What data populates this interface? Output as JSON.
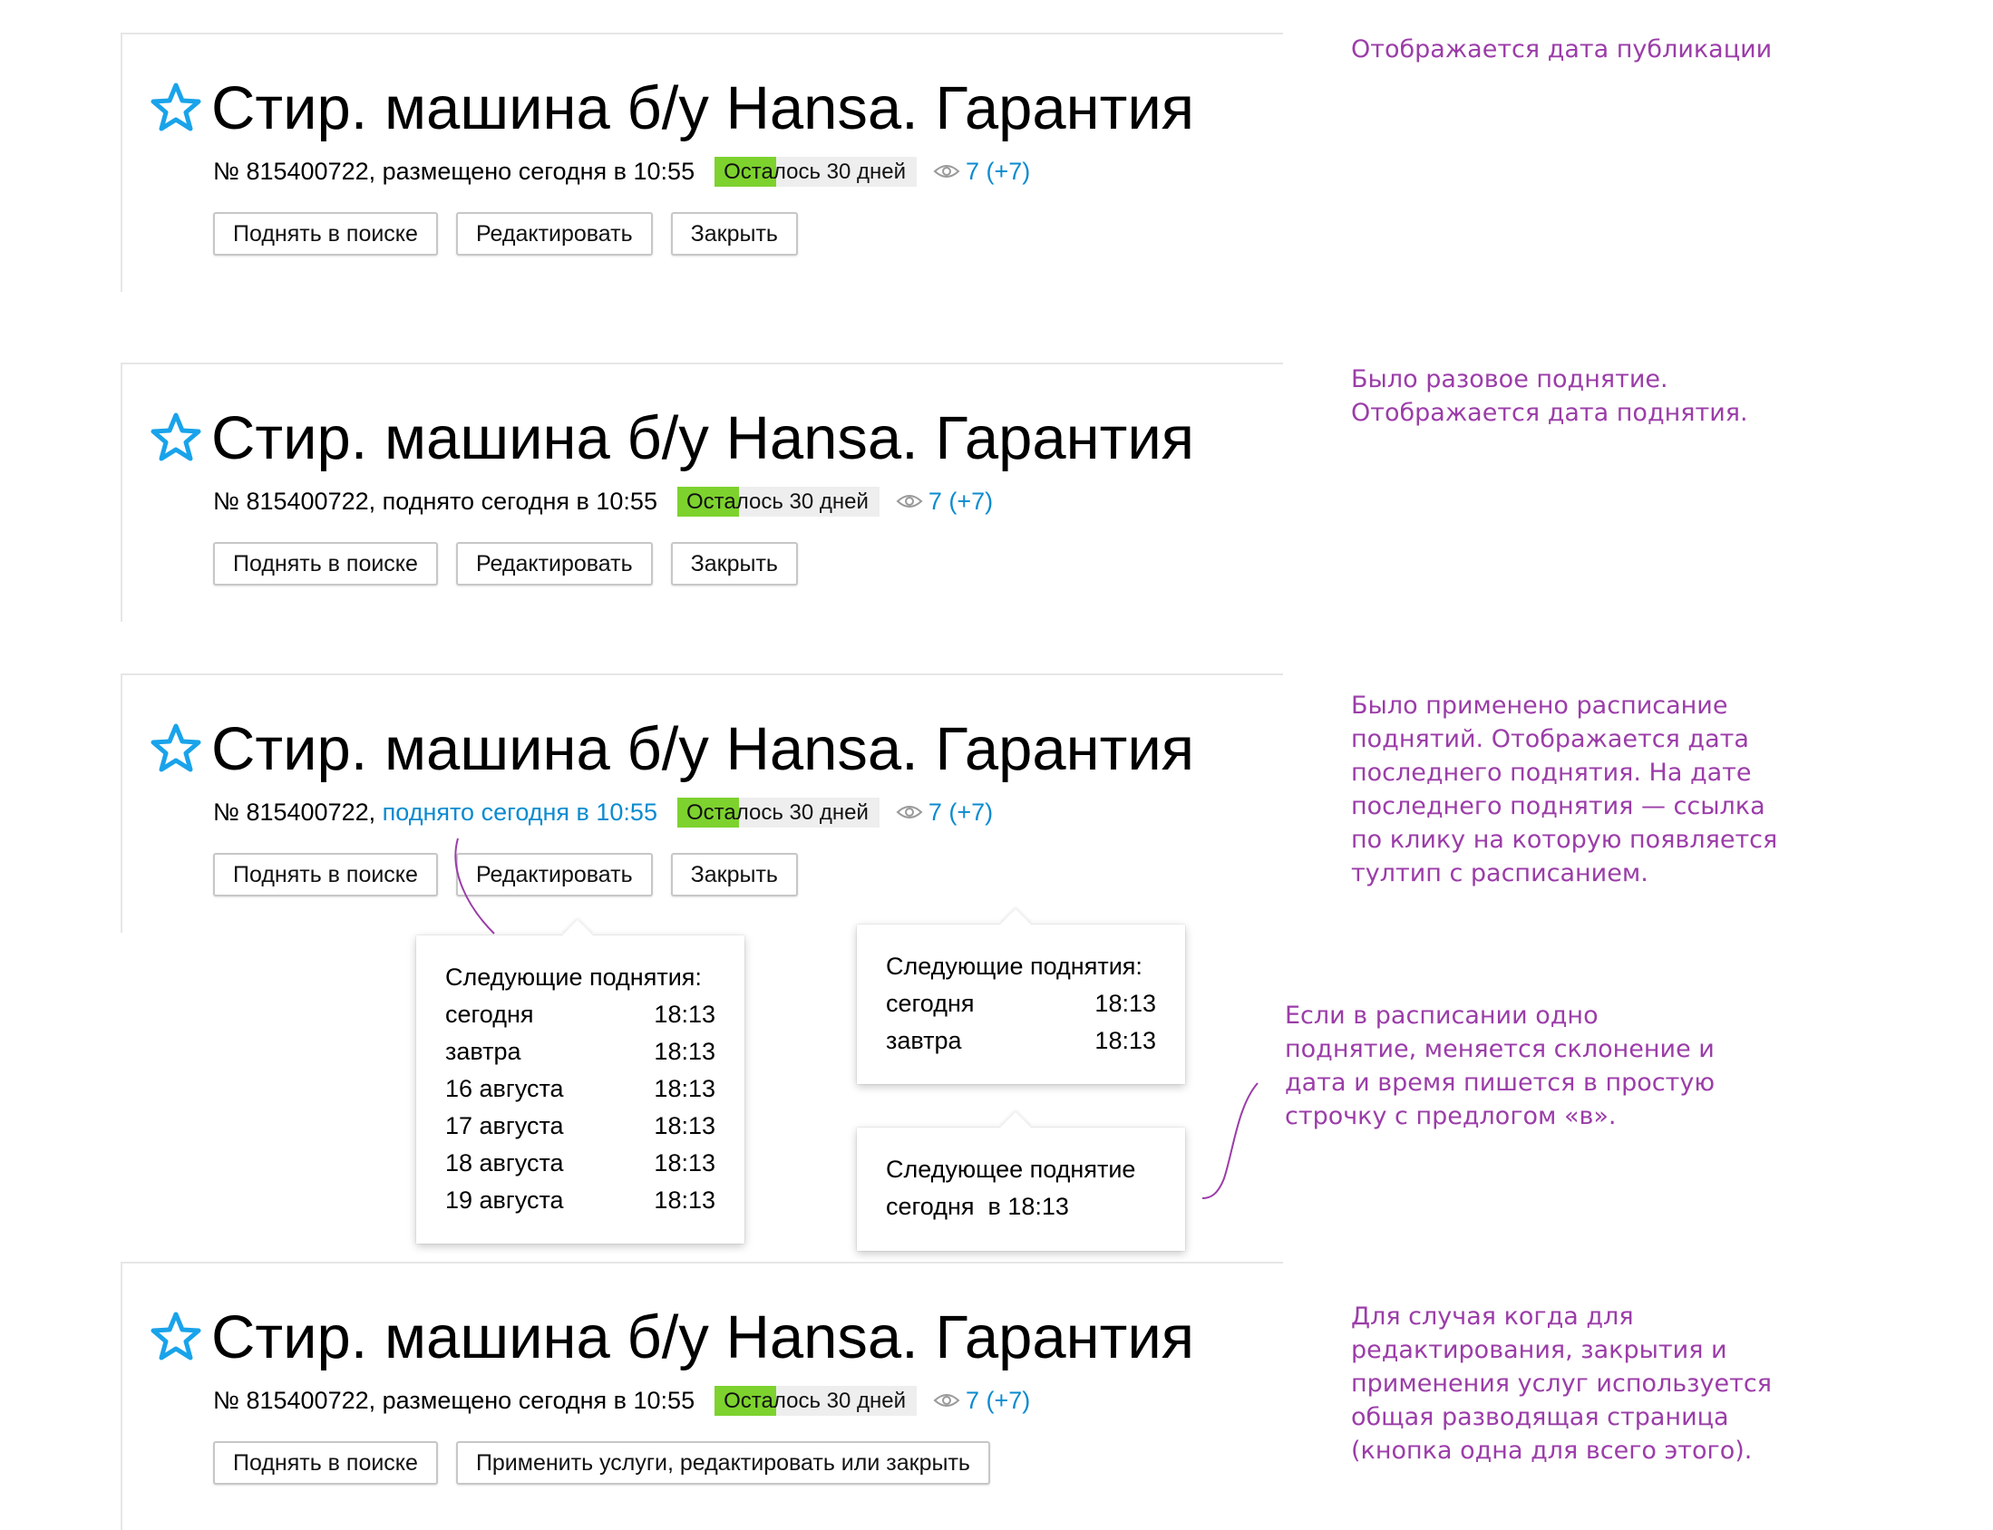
{
  "listings": [
    {
      "title": "Стир. машина б/у Hansa. Гарантия",
      "number": "№ 815400722",
      "sep": ",",
      "date_text": "размещено сегодня в 10:55",
      "days_left": "Осталось 30 дней",
      "views": "7 (+7)",
      "buttons": [
        "Поднять в поиске",
        "Редактировать",
        "Закрыть"
      ]
    },
    {
      "title": "Стир. машина б/у Hansa. Гарантия",
      "number": "№ 815400722",
      "sep": ",",
      "date_text": "поднято сегодня в 10:55",
      "days_left": "Осталось 30 дней",
      "views": "7 (+7)",
      "buttons": [
        "Поднять в поиске",
        "Редактировать",
        "Закрыть"
      ]
    },
    {
      "title": "Стир. машина б/у Hansa. Гарантия",
      "number": "№ 815400722",
      "sep": ",",
      "date_link": "поднято сегодня в 10:55",
      "days_left": "Осталось 30 дней",
      "views": "7 (+7)",
      "buttons": [
        "Поднять в поиске",
        "Редактировать",
        "Закрыть"
      ]
    },
    {
      "title": "Стир. машина б/у Hansa. Гарантия",
      "number": "№ 815400722",
      "sep": ",",
      "date_text": "размещено сегодня в 10:55",
      "days_left": "Осталось 30 дней",
      "views": "7 (+7)",
      "buttons": [
        "Поднять в поиске",
        "Применить услуги, редактировать или закрыть"
      ]
    }
  ],
  "tooltips": {
    "full": {
      "heading": "Следующие поднятия:",
      "rows": [
        {
          "day": "сегодня",
          "time": "18:13"
        },
        {
          "day": "завтра",
          "time": "18:13"
        },
        {
          "day": "16 августа",
          "time": "18:13"
        },
        {
          "day": "17 августа",
          "time": "18:13"
        },
        {
          "day": "18 августа",
          "time": "18:13"
        },
        {
          "day": "19 августа",
          "time": "18:13"
        }
      ]
    },
    "short": {
      "heading": "Следующие поднятия:",
      "rows": [
        {
          "day": "сегодня",
          "time": "18:13"
        },
        {
          "day": "завтра",
          "time": "18:13"
        }
      ]
    },
    "single": {
      "heading": "Следующее поднятие",
      "line": "сегодня  в 18:13"
    }
  },
  "notes": [
    [
      "Отображается дата публикации"
    ],
    [
      "Было разовое поднятие.",
      "Отображается дата поднятия."
    ],
    [
      "Было применено расписание",
      "поднятий. Отображается дата",
      "последнего поднятия. На дате",
      "последнего поднятия — ссылка",
      "по клику на которую появляется",
      "тултип с расписанием."
    ],
    [
      "Если в расписании одно",
      "поднятие, меняется склонение и",
      "дата и время пишется в простую",
      "строчку с предлогом «в»."
    ],
    [
      "Для случая когда для",
      "редактирования, закрытия и",
      "применения услуг используется",
      "общая разводящая страница",
      "(кнопка одна для всего этого)."
    ]
  ],
  "colors": {
    "accent_link": "#0b8bcf",
    "days_badge_green": "#7dd22e",
    "note_purple": "#9b3da8",
    "star_blue": "#19a3ea"
  },
  "icons": {
    "favorite": "star-outline-icon",
    "views": "eye-icon"
  }
}
